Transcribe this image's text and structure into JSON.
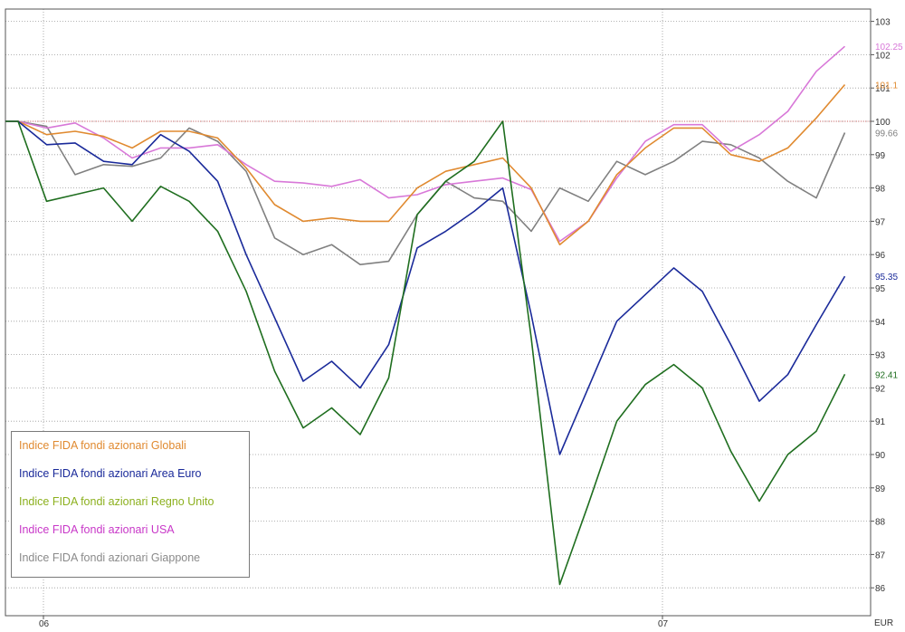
{
  "chart_data": {
    "type": "line",
    "x": [
      "06",
      "",
      "",
      "",
      "",
      "",
      "",
      "",
      "",
      "",
      "",
      "",
      "",
      "",
      "",
      "",
      "",
      "",
      "",
      "",
      "",
      "",
      "07",
      "",
      "",
      "",
      "",
      "",
      "",
      ""
    ],
    "x_tick_labels": [
      "06",
      "07"
    ],
    "y_tick_labels": [
      "86",
      "87",
      "88",
      "89",
      "90",
      "91",
      "92",
      "93",
      "94",
      "95",
      "96",
      "97",
      "98",
      "99",
      "100",
      "101",
      "102",
      "103"
    ],
    "ylim": [
      85.5,
      103.2
    ],
    "y_axis_unit": "EUR",
    "reference_line": 100,
    "grid": true,
    "legend_position": "bottom-left",
    "series": [
      {
        "name": "Indice FIDA fondi azionari Globali",
        "color": "#e08a30",
        "values": [
          100,
          99.6,
          99.7,
          99.55,
          99.2,
          99.7,
          99.7,
          99.5,
          98.6,
          97.5,
          97,
          97.1,
          97,
          97,
          98,
          98.5,
          98.7,
          98.9,
          98,
          96.3,
          97,
          98.4,
          99.2,
          99.8,
          99.8,
          99,
          98.8,
          99.2,
          100.1,
          101.1
        ]
      },
      {
        "name": "Indice FIDA fondi azionari Area Euro",
        "color": "#1a2a9a",
        "values": [
          100,
          99.3,
          99.35,
          98.8,
          98.7,
          99.6,
          99.1,
          98.2,
          96,
          94.1,
          92.2,
          92.8,
          92,
          93.3,
          96.2,
          96.7,
          97.3,
          98,
          94.2,
          90,
          92,
          94,
          94.8,
          95.6,
          94.9,
          93.3,
          91.6,
          92.4,
          93.9,
          95.35
        ]
      },
      {
        "name": "Indice FIDA fondi azionari Regno Unito",
        "color": "#1f6e1f",
        "values": [
          100,
          97.6,
          97.8,
          98,
          97,
          98.05,
          97.6,
          96.7,
          94.9,
          92.5,
          90.8,
          91.4,
          90.6,
          92.3,
          97.2,
          98.2,
          98.8,
          100,
          93.5,
          86.1,
          88.5,
          91,
          92.1,
          92.7,
          92,
          90.1,
          88.6,
          90,
          90.7,
          92.41
        ]
      },
      {
        "name": "Indice FIDA fondi azionari USA",
        "color": "#d878d8",
        "values": [
          100,
          99.8,
          99.95,
          99.5,
          98.9,
          99.2,
          99.2,
          99.3,
          98.7,
          98.2,
          98.15,
          98.05,
          98.25,
          97.7,
          97.8,
          98.1,
          98.2,
          98.3,
          97.95,
          96.4,
          97,
          98.3,
          99.4,
          99.9,
          99.9,
          99.1,
          99.6,
          100.3,
          101.5,
          102.25
        ]
      },
      {
        "name": "Indice FIDA fondi azionari Giappone",
        "color": "#808080",
        "values": [
          100,
          99.85,
          98.4,
          98.7,
          98.65,
          98.9,
          99.8,
          99.4,
          98.5,
          96.5,
          96,
          96.3,
          95.7,
          95.8,
          97.2,
          98.2,
          97.7,
          97.6,
          96.7,
          98,
          97.6,
          98.8,
          98.4,
          98.8,
          99.4,
          99.3,
          98.9,
          98.2,
          97.7,
          99.66
        ]
      }
    ],
    "end_labels": [
      "102.25",
      "101.1",
      "99.66",
      "95.35",
      "92.41"
    ]
  }
}
